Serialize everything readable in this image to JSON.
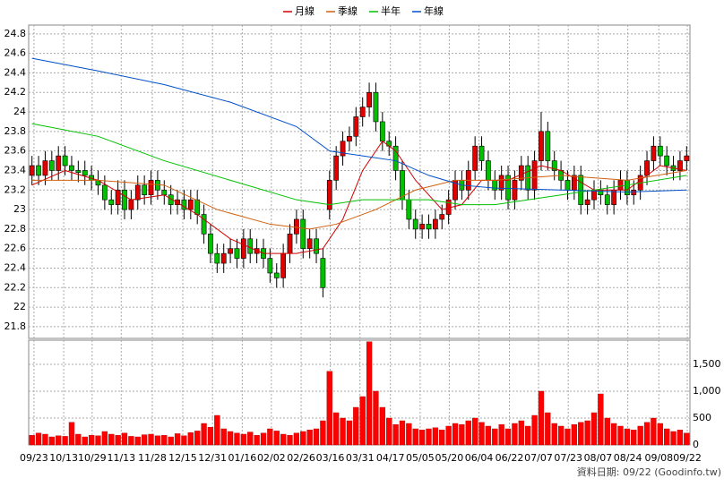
{
  "chart_data": {
    "type": "candlestick",
    "source": "資料日期: 09/22 (Goodinfo.tw)",
    "up_color": "#e00000",
    "down_color": "#00c000",
    "volume_color": "#ff0000",
    "xlim": [
      -0.5,
      99.5
    ],
    "xticks": [
      {
        "value": 0.3,
        "label": "09/23"
      },
      {
        "value": 4.8,
        "label": "10/13"
      },
      {
        "value": 9.1,
        "label": "10/29"
      },
      {
        "value": 13.5,
        "label": "11/13"
      },
      {
        "value": 18.2,
        "label": "11/28"
      },
      {
        "value": 22.8,
        "label": "12/15"
      },
      {
        "value": 27.3,
        "label": "12/31"
      },
      {
        "value": 31.8,
        "label": "01/16"
      },
      {
        "value": 36.2,
        "label": "02/02"
      },
      {
        "value": 40.7,
        "label": "02/26"
      },
      {
        "value": 45.1,
        "label": "03/16"
      },
      {
        "value": 49.6,
        "label": "03/31"
      },
      {
        "value": 54.2,
        "label": "04/17"
      },
      {
        "value": 58.7,
        "label": "05/05"
      },
      {
        "value": 63.1,
        "label": "05/20"
      },
      {
        "value": 67.6,
        "label": "06/04"
      },
      {
        "value": 72.2,
        "label": "06/22"
      },
      {
        "value": 76.6,
        "label": "07/07"
      },
      {
        "value": 81.1,
        "label": "07/23"
      },
      {
        "value": 85.6,
        "label": "08/07"
      },
      {
        "value": 90.1,
        "label": "08/24"
      },
      {
        "value": 94.8,
        "label": "09/08"
      },
      {
        "value": 99.1,
        "label": "09/22"
      }
    ],
    "ylim": [
      21.68,
      24.89
    ],
    "yticks": [
      21.8,
      22,
      22.2,
      22.4,
      22.6,
      22.8,
      23,
      23.2,
      23.4,
      23.6,
      23.8,
      24,
      24.2,
      24.4,
      24.6,
      24.8
    ],
    "y2lim": [
      0,
      1950
    ],
    "y2ticks": [
      0,
      500,
      {
        "value": 1000,
        "label": "1,000"
      },
      {
        "value": 1500,
        "label": "1,500"
      }
    ],
    "grid": true,
    "open": [
      23.35,
      23.45,
      23.35,
      23.5,
      23.4,
      23.55,
      23.45,
      23.4,
      23.4,
      23.35,
      23.3,
      23.25,
      23.1,
      23.05,
      23.2,
      23.0,
      23.1,
      23.25,
      23.15,
      23.3,
      23.2,
      23.15,
      23.05,
      23.1,
      23.0,
      23.1,
      22.95,
      22.75,
      22.55,
      22.45,
      22.55,
      22.6,
      22.5,
      22.7,
      22.55,
      22.6,
      22.5,
      22.35,
      22.3,
      22.55,
      22.75,
      22.9,
      22.6,
      22.7,
      22.5,
      23.0,
      23.3,
      23.55,
      23.7,
      23.75,
      23.95,
      24.05,
      24.2,
      23.9,
      23.7,
      23.65,
      23.4,
      23.1,
      22.9,
      22.8,
      22.85,
      22.8,
      22.9,
      22.95,
      23.1,
      23.3,
      23.2,
      23.4,
      23.65,
      23.5,
      23.3,
      23.2,
      23.35,
      23.1,
      23.3,
      23.45,
      23.2,
      23.5,
      23.8,
      23.5,
      23.4,
      23.3,
      23.2,
      23.35,
      23.05,
      23.1,
      23.2,
      23.15,
      23.05,
      23.2,
      23.3,
      23.15,
      23.2,
      23.35,
      23.5,
      23.65,
      23.55,
      23.45,
      23.4,
      23.5
    ],
    "high": [
      23.55,
      23.55,
      23.6,
      23.6,
      23.65,
      23.65,
      23.55,
      23.5,
      23.5,
      23.45,
      23.4,
      23.35,
      23.2,
      23.3,
      23.3,
      23.2,
      23.35,
      23.35,
      23.4,
      23.4,
      23.3,
      23.25,
      23.2,
      23.2,
      23.2,
      23.2,
      23.05,
      22.85,
      22.65,
      22.65,
      22.7,
      22.7,
      22.8,
      22.8,
      22.7,
      22.7,
      22.6,
      22.45,
      22.65,
      22.85,
      23.0,
      23.0,
      22.8,
      22.8,
      22.6,
      23.4,
      23.65,
      23.8,
      23.85,
      24.05,
      24.15,
      24.3,
      24.3,
      24.0,
      23.8,
      23.75,
      23.5,
      23.2,
      23.0,
      22.95,
      22.95,
      23.0,
      23.05,
      23.2,
      23.4,
      23.4,
      23.5,
      23.75,
      23.75,
      23.6,
      23.4,
      23.45,
      23.45,
      23.4,
      23.55,
      23.55,
      23.6,
      24.0,
      23.9,
      23.6,
      23.5,
      23.4,
      23.45,
      23.45,
      23.2,
      23.3,
      23.3,
      23.25,
      23.3,
      23.4,
      23.4,
      23.3,
      23.45,
      23.6,
      23.75,
      23.75,
      23.65,
      23.55,
      23.6,
      23.65
    ],
    "low": [
      23.25,
      23.25,
      23.25,
      23.3,
      23.3,
      23.35,
      23.3,
      23.28,
      23.25,
      23.2,
      23.15,
      23.0,
      22.95,
      22.95,
      22.9,
      22.9,
      23.0,
      23.05,
      23.05,
      23.1,
      23.05,
      22.95,
      22.95,
      22.9,
      22.9,
      22.85,
      22.65,
      22.45,
      22.35,
      22.35,
      22.45,
      22.4,
      22.4,
      22.45,
      22.45,
      22.4,
      22.25,
      22.2,
      22.2,
      22.45,
      22.65,
      22.5,
      22.5,
      22.45,
      22.1,
      22.9,
      23.2,
      23.45,
      23.6,
      23.65,
      23.85,
      23.95,
      23.8,
      23.6,
      23.55,
      23.3,
      23.0,
      22.8,
      22.7,
      22.7,
      22.7,
      22.7,
      22.8,
      22.85,
      23.0,
      23.1,
      23.1,
      23.3,
      23.4,
      23.2,
      23.1,
      23.1,
      23.0,
      23.0,
      23.2,
      23.1,
      23.1,
      23.4,
      23.4,
      23.3,
      23.2,
      23.1,
      23.1,
      22.95,
      22.95,
      23.0,
      23.05,
      22.95,
      22.95,
      23.1,
      23.05,
      23.05,
      23.1,
      23.25,
      23.4,
      23.45,
      23.35,
      23.3,
      23.3,
      23.4
    ],
    "close": [
      23.45,
      23.35,
      23.5,
      23.4,
      23.55,
      23.45,
      23.4,
      23.38,
      23.35,
      23.3,
      23.25,
      23.1,
      23.05,
      23.2,
      23.0,
      23.1,
      23.25,
      23.15,
      23.3,
      23.2,
      23.15,
      23.05,
      23.1,
      23.0,
      23.1,
      22.95,
      22.75,
      22.55,
      22.45,
      22.55,
      22.6,
      22.5,
      22.7,
      22.55,
      22.6,
      22.5,
      22.35,
      22.3,
      22.55,
      22.75,
      22.9,
      22.6,
      22.7,
      22.55,
      22.2,
      23.3,
      23.55,
      23.7,
      23.75,
      23.95,
      24.05,
      24.2,
      23.9,
      23.7,
      23.65,
      23.4,
      23.1,
      22.9,
      22.8,
      22.85,
      22.8,
      22.9,
      22.95,
      23.1,
      23.3,
      23.2,
      23.4,
      23.65,
      23.5,
      23.3,
      23.2,
      23.35,
      23.1,
      23.3,
      23.45,
      23.2,
      23.5,
      23.8,
      23.5,
      23.4,
      23.3,
      23.2,
      23.35,
      23.05,
      23.1,
      23.2,
      23.15,
      23.05,
      23.2,
      23.3,
      23.15,
      23.2,
      23.35,
      23.5,
      23.65,
      23.55,
      23.45,
      23.4,
      23.5,
      23.55
    ],
    "volume": [
      180,
      220,
      200,
      150,
      170,
      160,
      420,
      200,
      150,
      180,
      170,
      250,
      200,
      180,
      220,
      160,
      150,
      190,
      200,
      170,
      180,
      150,
      210,
      170,
      230,
      260,
      400,
      330,
      550,
      300,
      250,
      220,
      200,
      240,
      180,
      220,
      300,
      260,
      200,
      180,
      220,
      250,
      280,
      300,
      450,
      1370,
      600,
      500,
      450,
      700,
      900,
      1920,
      1000,
      700,
      500,
      380,
      450,
      400,
      300,
      280,
      300,
      320,
      280,
      350,
      400,
      380,
      450,
      500,
      420,
      350,
      300,
      380,
      300,
      400,
      450,
      350,
      550,
      1000,
      600,
      400,
      350,
      300,
      380,
      420,
      450,
      600,
      950,
      500,
      400,
      350,
      300,
      280,
      350,
      420,
      500,
      400,
      300,
      250,
      280,
      220
    ],
    "series": [
      {
        "name": "月線",
        "color": "#d00000",
        "x": [
          0,
          5,
          10,
          15,
          20,
          25,
          30,
          35,
          40,
          44,
          47,
          50,
          53,
          55,
          58,
          62,
          65,
          68,
          72,
          77,
          80,
          85,
          90,
          95,
          99
        ],
        "values": [
          23.25,
          23.4,
          23.3,
          23.1,
          23.15,
          22.95,
          22.7,
          22.55,
          22.55,
          22.6,
          22.9,
          23.4,
          23.7,
          23.6,
          23.3,
          23.0,
          23.05,
          23.3,
          23.3,
          23.45,
          23.4,
          23.2,
          23.2,
          23.45,
          23.4
        ]
      },
      {
        "name": "季線",
        "color": "#d06010",
        "x": [
          0,
          10,
          20,
          28,
          36,
          42,
          46,
          52,
          58,
          64,
          70,
          80,
          90,
          99
        ],
        "values": [
          23.3,
          23.3,
          23.25,
          23.0,
          22.85,
          22.8,
          22.85,
          23.0,
          23.2,
          23.3,
          23.3,
          23.35,
          23.3,
          23.4
        ]
      },
      {
        "name": "半年",
        "color": "#00c000",
        "x": [
          0,
          10,
          20,
          30,
          40,
          45,
          50,
          55,
          60,
          65,
          70,
          80,
          90,
          99
        ],
        "values": [
          23.88,
          23.75,
          23.5,
          23.3,
          23.1,
          23.05,
          23.1,
          23.1,
          23.1,
          23.05,
          23.05,
          23.15,
          23.25,
          23.35
        ]
      },
      {
        "name": "年線",
        "color": "#0050c8",
        "x": [
          0,
          10,
          20,
          30,
          40,
          45,
          50,
          55,
          60,
          65,
          70,
          80,
          90,
          99
        ],
        "values": [
          24.55,
          24.42,
          24.28,
          24.1,
          23.85,
          23.6,
          23.55,
          23.5,
          23.35,
          23.25,
          23.22,
          23.2,
          23.18,
          23.2
        ]
      }
    ]
  }
}
